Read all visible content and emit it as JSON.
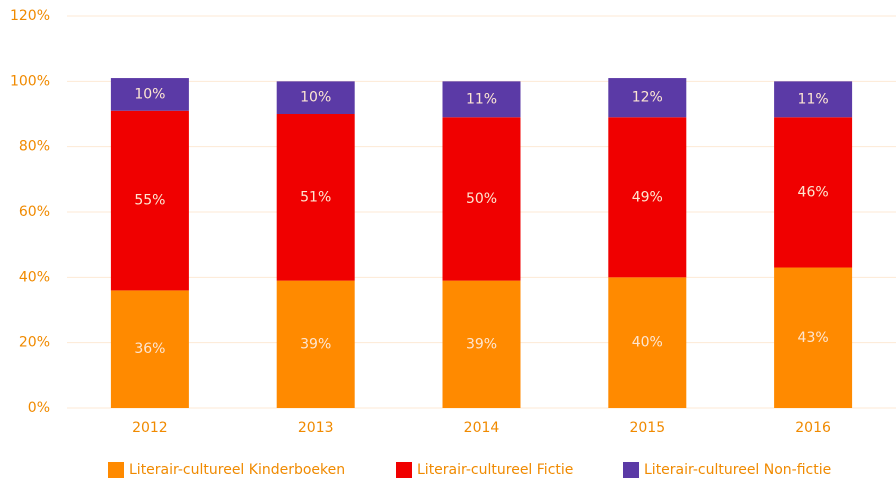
{
  "chart_data": {
    "type": "stacked-bar",
    "categories": [
      "2012",
      "2013",
      "2014",
      "2015",
      "2016"
    ],
    "series": [
      {
        "name": "Literair-cultureel Kinderboeken",
        "color": "#ff8a00",
        "values": [
          36,
          39,
          39,
          40,
          43
        ],
        "value_labels": [
          "36%",
          "39%",
          "39%",
          "40%",
          "43%"
        ]
      },
      {
        "name": "Literair-cultureel Fictie",
        "color": "#f00000",
        "values": [
          55,
          51,
          50,
          49,
          46
        ],
        "value_labels": [
          "55%",
          "51%",
          "50%",
          "49%",
          "46%"
        ]
      },
      {
        "name": "Literair-cultureel Non-fictie",
        "color": "#5b3aa6",
        "values": [
          10,
          10,
          11,
          12,
          11
        ],
        "value_labels": [
          "10%",
          "10%",
          "11%",
          "12%",
          "11%"
        ]
      }
    ],
    "ylim": [
      0,
      120
    ],
    "yticks": [
      {
        "value": 0,
        "label": "0%"
      },
      {
        "value": 20,
        "label": "20%"
      },
      {
        "value": 40,
        "label": "40%"
      },
      {
        "value": 60,
        "label": "60%"
      },
      {
        "value": 80,
        "label": "80%"
      },
      {
        "value": 100,
        "label": "100%"
      },
      {
        "value": 120,
        "label": "120%"
      }
    ],
    "grid": true,
    "legend": "bottom"
  }
}
